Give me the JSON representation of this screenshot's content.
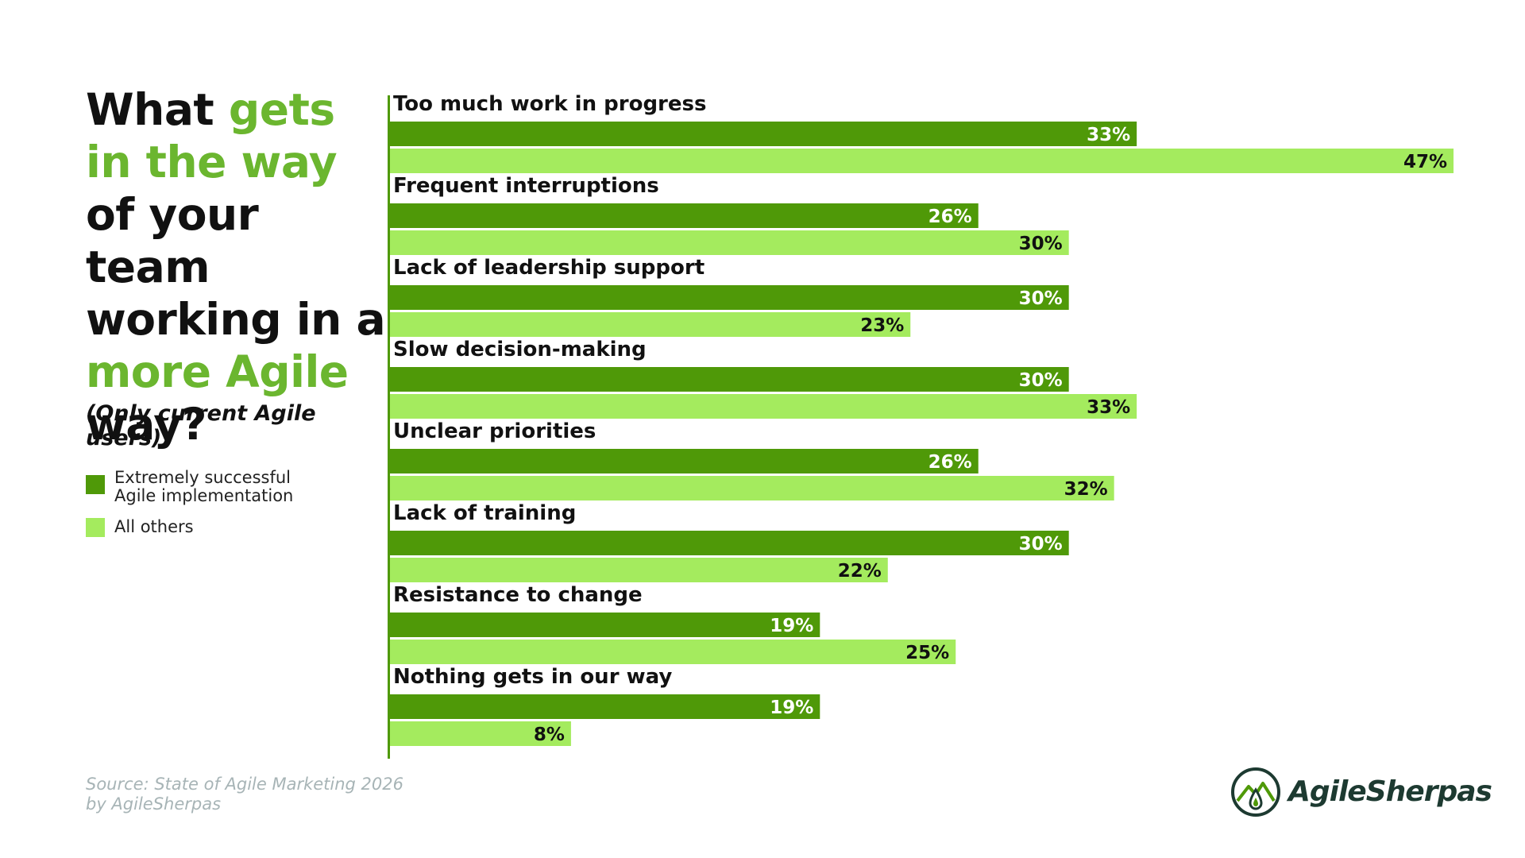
{
  "title_parts": [
    {
      "text": "What ",
      "accent": false
    },
    {
      "text": "gets in the way",
      "accent": true
    },
    {
      "text": " of your team working in a ",
      "accent": false
    },
    {
      "text": "more Agile",
      "accent": true
    },
    {
      "text": " way?",
      "accent": false
    }
  ],
  "subtitle": "(Only current Agile users)",
  "source_line1": "Source: State of Agile Marketing 2026",
  "source_line2": "by AgileSherpas",
  "logo_text": "AgileSherpas",
  "colors": {
    "dark_green": "#4f9908",
    "light_green": "#a4eb5e",
    "accent_text": "#6bb62f",
    "logo": "#1d3a31"
  },
  "icons": {
    "logo": "mountain-drop-logo-icon"
  },
  "chart_data": {
    "type": "bar",
    "orientation": "horizontal",
    "title": "What gets in the way of your team working in a more Agile way?",
    "subtitle": "(Only current Agile users)",
    "unit": "%",
    "xlim": [
      0,
      47
    ],
    "grid": false,
    "legend_position": "left",
    "categories": [
      "Too much work in progress",
      "Frequent interruptions",
      "Lack of leadership support",
      "Slow decision-making",
      "Unclear priorities",
      "Lack of training",
      "Resistance to change",
      "Nothing gets in our way"
    ],
    "series": [
      {
        "name": "Extremely successful Agile implementation",
        "legend_lines": [
          "Extremely successful",
          "Agile implementation"
        ],
        "color": "#4f9908",
        "label_color": "#ffffff",
        "values": [
          33,
          26,
          30,
          30,
          26,
          30,
          19,
          19
        ]
      },
      {
        "name": "All others",
        "legend_lines": [
          "All others"
        ],
        "color": "#a4eb5e",
        "label_color": "#111111",
        "values": [
          47,
          30,
          23,
          33,
          32,
          22,
          25,
          8
        ]
      }
    ]
  }
}
